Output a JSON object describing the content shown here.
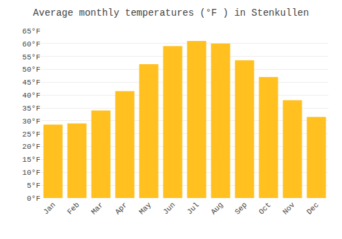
{
  "chart_data": {
    "type": "bar",
    "title": "Average monthly temperatures (°F ) in Stenkullen",
    "categories": [
      "Jan",
      "Feb",
      "Mar",
      "Apr",
      "May",
      "Jun",
      "Jul",
      "Aug",
      "Sep",
      "Oct",
      "Nov",
      "Dec"
    ],
    "values": [
      28.5,
      29.0,
      34.0,
      41.5,
      52.0,
      59.0,
      61.0,
      60.0,
      53.5,
      47.0,
      38.0,
      31.5
    ],
    "color": "#FFC020",
    "ylim": [
      0,
      65
    ],
    "yticks": [
      {
        "value": 0,
        "label": "0°F"
      },
      {
        "value": 5,
        "label": "5°F"
      },
      {
        "value": 10,
        "label": "10°F"
      },
      {
        "value": 15,
        "label": "15°F"
      },
      {
        "value": 20,
        "label": "20°F"
      },
      {
        "value": 25,
        "label": "25°F"
      },
      {
        "value": 30,
        "label": "30°F"
      },
      {
        "value": 35,
        "label": "35°F"
      },
      {
        "value": 40,
        "label": "40°F"
      },
      {
        "value": 45,
        "label": "45°F"
      },
      {
        "value": 50,
        "label": "50°F"
      },
      {
        "value": 55,
        "label": "55°F"
      },
      {
        "value": 60,
        "label": "60°F"
      },
      {
        "value": 65,
        "label": "65°F"
      }
    ],
    "grid": true
  }
}
